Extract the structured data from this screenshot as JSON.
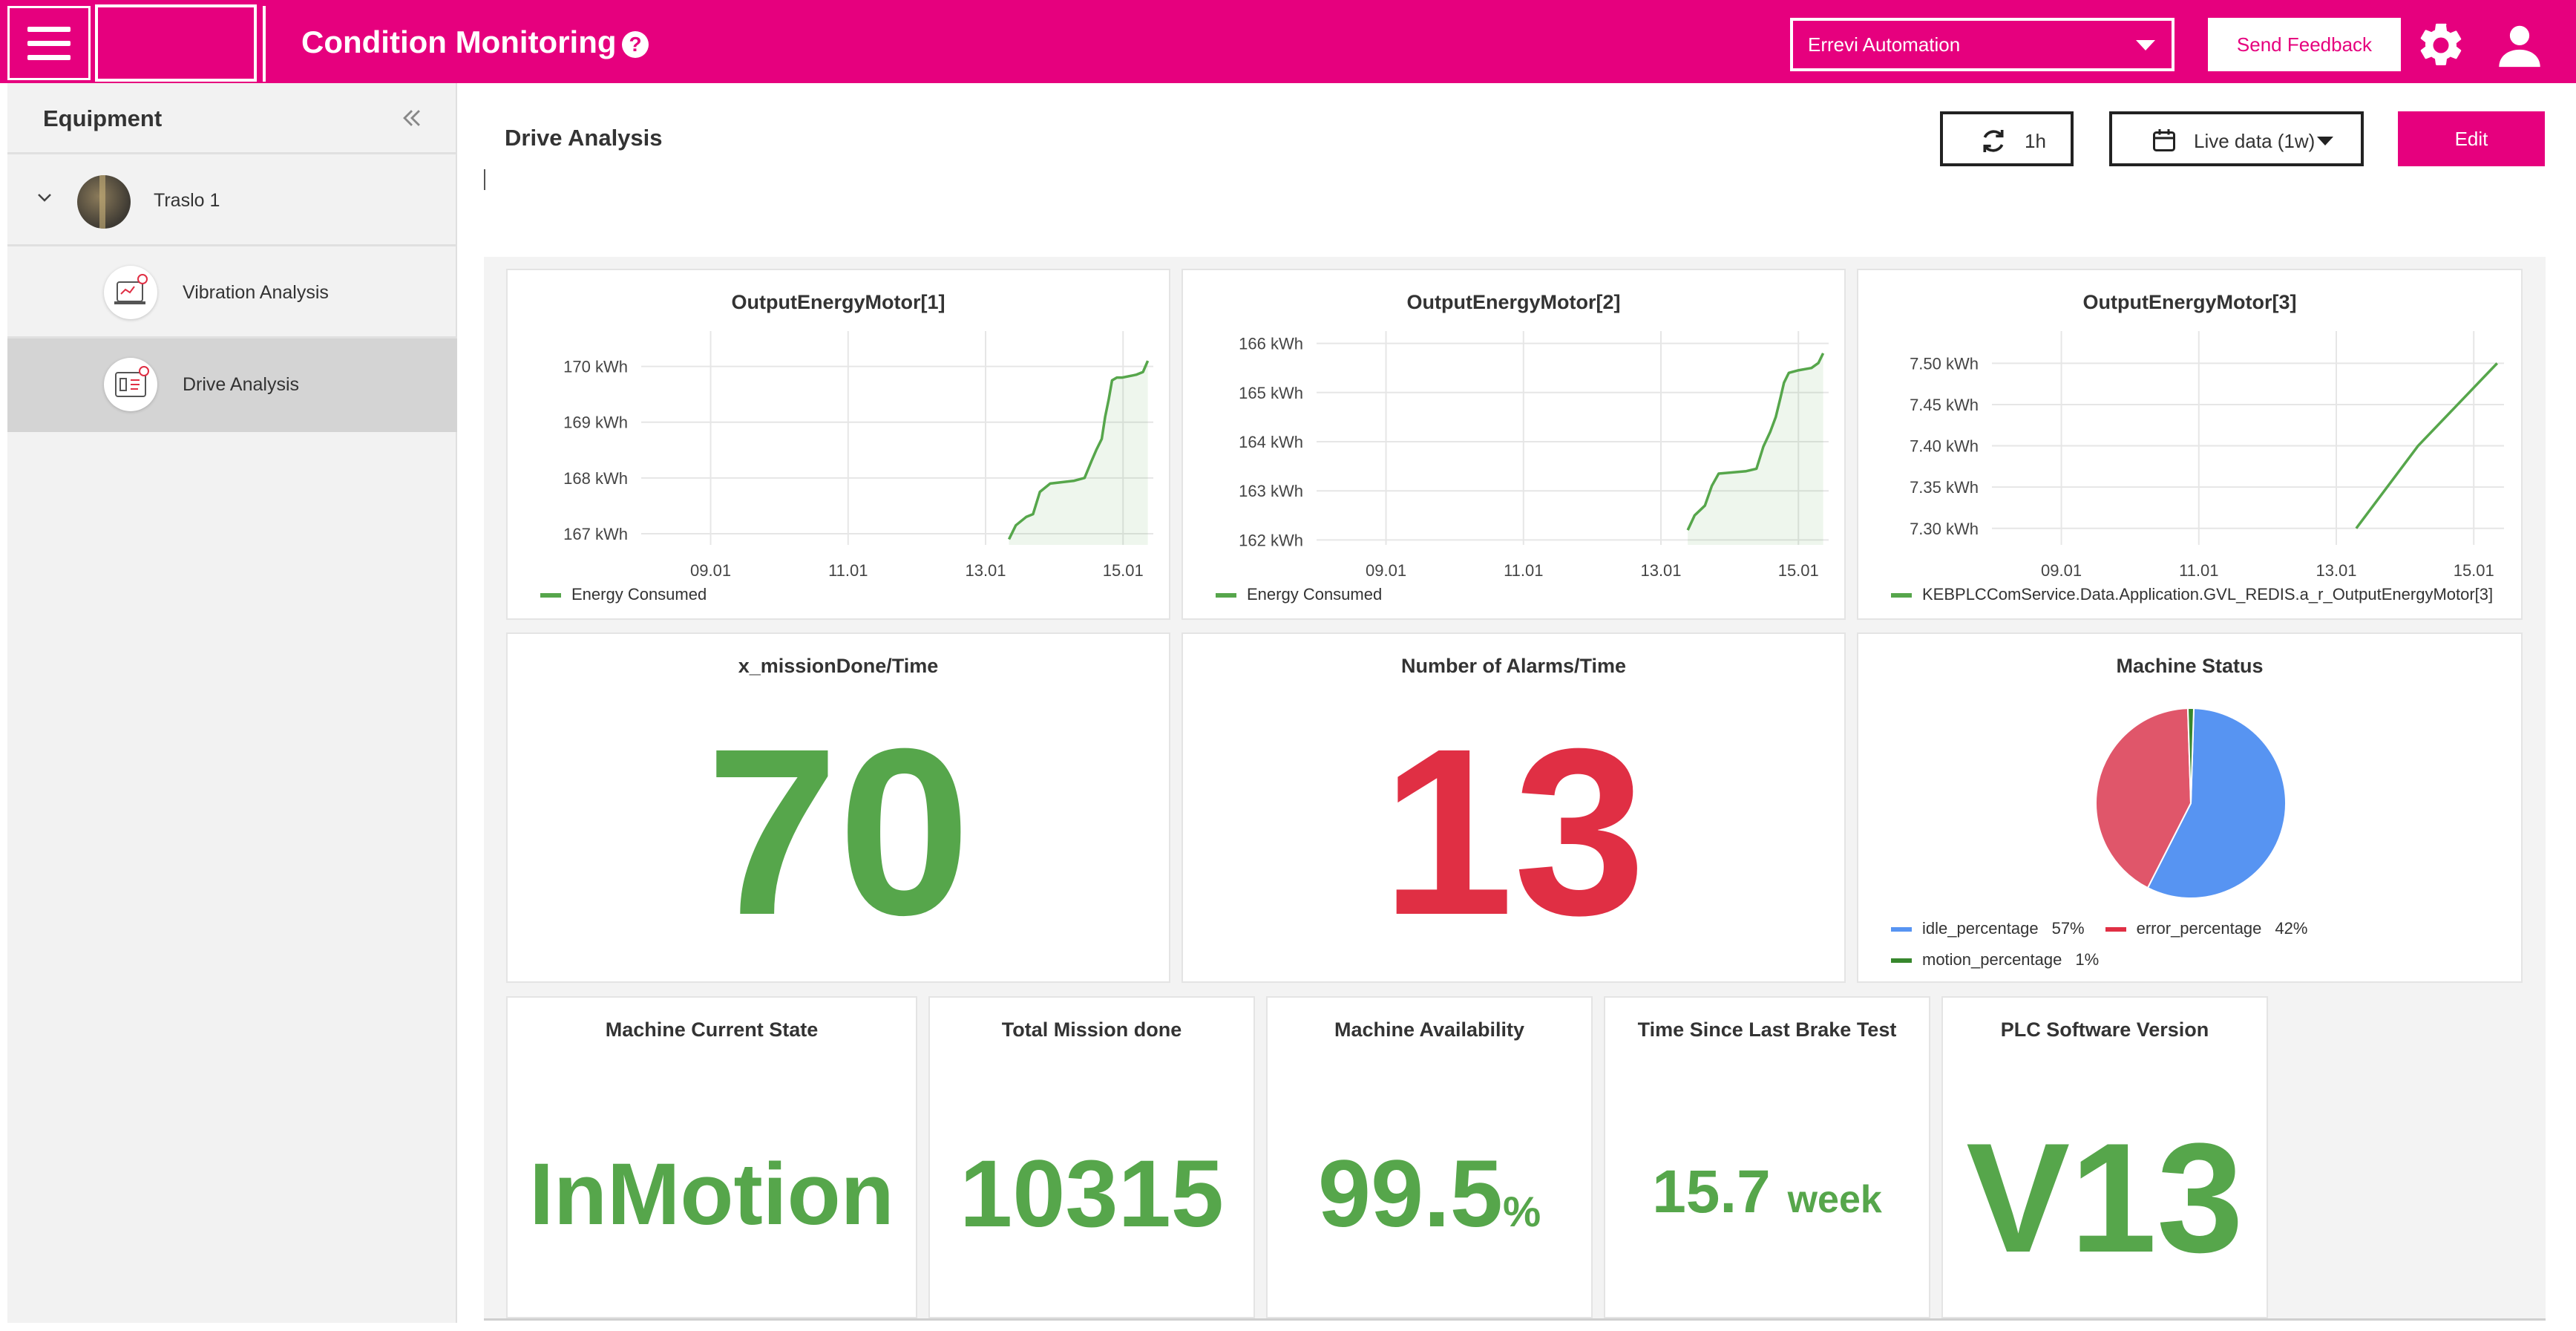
{
  "header": {
    "app_title": "Condition Monitoring",
    "help_icon": "question-circle-icon",
    "organization": "Errevi Automation",
    "feedback_label": "Send Feedback",
    "colors": {
      "brand": "#e6007e",
      "text_on_brand": "#ffffff"
    }
  },
  "sidebar": {
    "title": "Equipment",
    "collapse_icon": "double-chevron-left-icon",
    "items": [
      {
        "label": "Traslo 1",
        "expanded": true
      },
      {
        "label": "Vibration Analysis"
      },
      {
        "label": "Drive Analysis",
        "selected": true
      }
    ]
  },
  "main": {
    "title": "Drive Analysis",
    "refresh_label": "1h",
    "time_range_label": "Live data (1w)",
    "edit_label": "Edit"
  },
  "panels": {
    "energy1": {
      "title": "OutputEnergyMotor[1]",
      "legend": "Energy Consumed"
    },
    "energy2": {
      "title": "OutputEnergyMotor[2]",
      "legend": "Energy Consumed"
    },
    "energy3": {
      "title": "OutputEnergyMotor[3]",
      "legend": "KEBPLCComService.Data.Application.GVL_REDIS.a_r_OutputEnergyMotor[3]"
    },
    "missions": {
      "title": "x_missionDone/Time",
      "value": "70",
      "color": "#56a64b"
    },
    "alarms": {
      "title": "Number of Alarms/Time",
      "value": "13",
      "color": "#e02f44"
    },
    "status": {
      "title": "Machine Status",
      "legend": [
        {
          "label": "idle_percentage",
          "value": "57%",
          "color": "#5794f2"
        },
        {
          "label": "error_percentage",
          "value": "42%",
          "color": "#e02f44"
        },
        {
          "label": "motion_percentage",
          "value": "1%",
          "color": "#37872d"
        }
      ]
    },
    "current_state": {
      "title": "Machine Current State",
      "value": "InMotion"
    },
    "total_missions": {
      "title": "Total Mission done",
      "value": "10315"
    },
    "availability": {
      "title": "Machine Availability",
      "value": "99.5",
      "unit": "%"
    },
    "brake_test": {
      "title": "Time Since Last Brake Test",
      "value": "15.7",
      "unit": "week"
    },
    "plc_version": {
      "title": "PLC Software Version",
      "value": "V13"
    }
  },
  "chart_data": [
    {
      "type": "area",
      "title": "OutputEnergyMotor[1]",
      "x_ticks": [
        "09.01",
        "11.01",
        "13.01",
        "15.01"
      ],
      "y_ticks": [
        "167 kWh",
        "168 kWh",
        "169 kWh",
        "170 kWh"
      ],
      "ylim": [
        166.8,
        170.5
      ],
      "xlim": [
        8.0,
        15.45
      ],
      "series": [
        {
          "name": "Energy Consumed",
          "color": "#56a64b",
          "x": [
            13.35,
            13.45,
            13.6,
            13.7,
            13.8,
            13.95,
            14.3,
            14.45,
            14.55,
            14.62,
            14.7,
            14.75,
            14.8,
            14.85,
            14.92,
            15.0,
            15.2,
            15.3,
            15.37
          ],
          "y": [
            166.9,
            167.15,
            167.3,
            167.35,
            167.75,
            167.9,
            167.95,
            168.0,
            168.3,
            168.5,
            168.7,
            169.1,
            169.4,
            169.75,
            169.8,
            169.8,
            169.85,
            169.9,
            170.1
          ]
        }
      ]
    },
    {
      "type": "area",
      "title": "OutputEnergyMotor[2]",
      "x_ticks": [
        "09.01",
        "11.01",
        "13.01",
        "15.01"
      ],
      "y_ticks": [
        "162 kWh",
        "163 kWh",
        "164 kWh",
        "165 kWh",
        "166 kWh"
      ],
      "ylim": [
        161.9,
        166.1
      ],
      "xlim": [
        8.0,
        15.45
      ],
      "series": [
        {
          "name": "Energy Consumed",
          "color": "#56a64b",
          "x": [
            13.4,
            13.5,
            13.65,
            13.75,
            13.85,
            14.25,
            14.4,
            14.5,
            14.6,
            14.68,
            14.75,
            14.8,
            14.87,
            15.0,
            15.2,
            15.3,
            15.37
          ],
          "y": [
            162.2,
            162.5,
            162.7,
            163.1,
            163.35,
            163.4,
            163.45,
            163.9,
            164.2,
            164.5,
            164.9,
            165.2,
            165.4,
            165.45,
            165.5,
            165.6,
            165.8
          ]
        }
      ]
    },
    {
      "type": "line",
      "title": "OutputEnergyMotor[3]",
      "x_ticks": [
        "09.01",
        "11.01",
        "13.01",
        "15.01"
      ],
      "y_ticks": [
        "7.30 kWh",
        "7.35 kWh",
        "7.40 kWh",
        "7.45 kWh",
        "7.50 kWh"
      ],
      "ylim": [
        7.28,
        7.53
      ],
      "xlim": [
        8.0,
        15.45
      ],
      "series": [
        {
          "name": "KEBPLCComService.Data.Application.GVL_REDIS.a_r_OutputEnergyMotor[3]",
          "color": "#56a64b",
          "x": [
            13.3,
            14.2,
            15.35
          ],
          "y": [
            7.3,
            7.4,
            7.5
          ]
        }
      ]
    },
    {
      "type": "pie",
      "title": "Machine Status",
      "categories": [
        "idle_percentage",
        "error_percentage",
        "motion_percentage"
      ],
      "values": [
        57,
        42,
        1
      ],
      "colors": [
        "#5794f2",
        "#e0566a",
        "#37872d"
      ]
    }
  ]
}
